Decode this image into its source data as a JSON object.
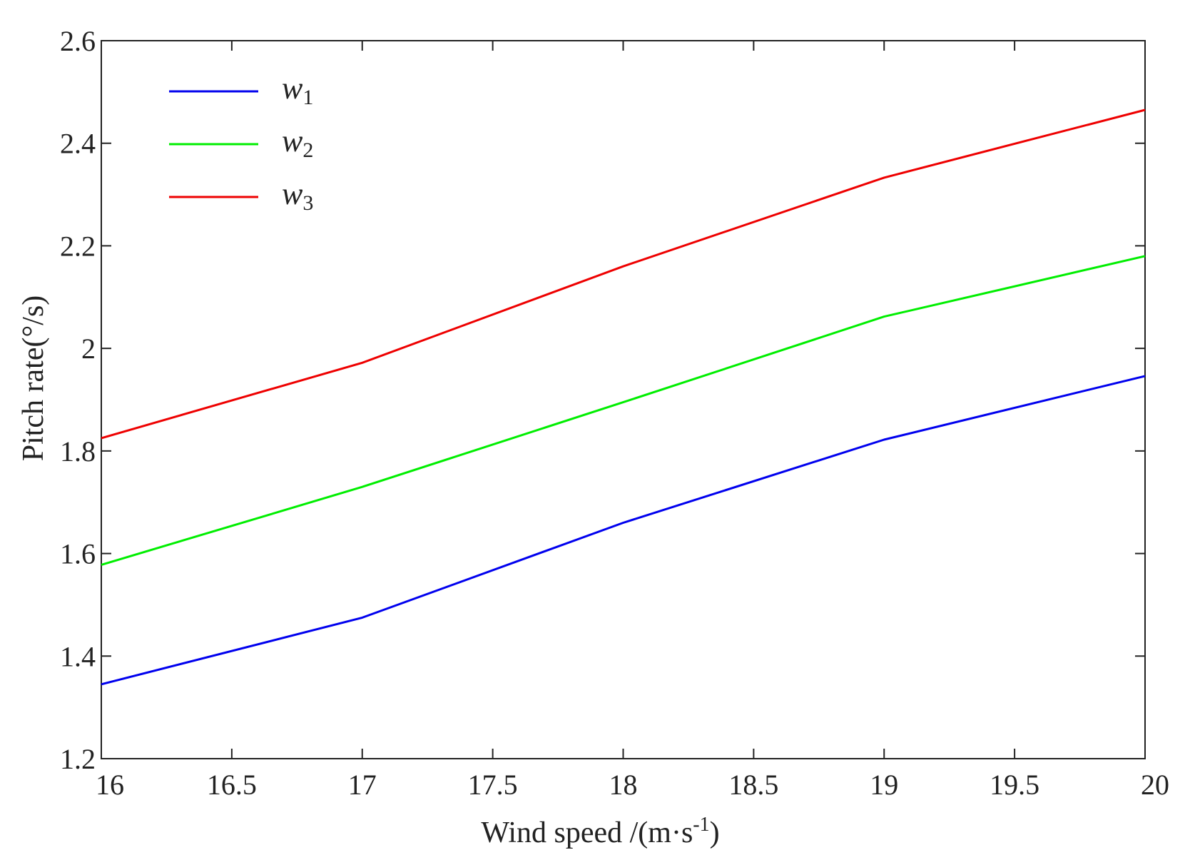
{
  "chart_data": {
    "type": "line",
    "title": "",
    "xlabel": "Wind speed  /(m·s",
    "xlabel_superscript": "-1",
    "xlabel_close": ")",
    "ylabel": "Pitch rate(°/s)",
    "xlim": [
      16,
      20
    ],
    "ylim": [
      1.2,
      2.6
    ],
    "xticks": [
      16,
      16.5,
      17,
      17.5,
      18,
      18.5,
      19,
      19.5,
      20
    ],
    "xtick_labels": [
      "16",
      "16.5",
      "17",
      "17.5",
      "18",
      "18.5",
      "19",
      "19.5",
      "20"
    ],
    "yticks": [
      1.2,
      1.4,
      1.6,
      1.8,
      2.0,
      2.2,
      2.4,
      2.6
    ],
    "ytick_labels": [
      "1.2",
      "1.4",
      "1.6",
      "1.8",
      "2",
      "2.2",
      "2.4",
      "2.6"
    ],
    "grid": false,
    "legend_position": "top-left",
    "x": [
      16,
      17,
      18,
      19,
      20
    ],
    "series": [
      {
        "name": "w",
        "subscript": "1",
        "color": "#0000ee",
        "values": [
          1.345,
          1.475,
          1.66,
          1.822,
          1.946
        ]
      },
      {
        "name": "w",
        "subscript": "2",
        "color": "#00ee00",
        "values": [
          1.578,
          1.73,
          1.895,
          2.062,
          2.18
        ]
      },
      {
        "name": "w",
        "subscript": "3",
        "color": "#ee0000",
        "values": [
          1.825,
          1.972,
          2.16,
          2.333,
          2.465
        ]
      }
    ]
  }
}
